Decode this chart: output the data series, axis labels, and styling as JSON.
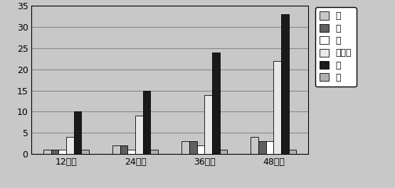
{
  "categories": [
    "12个月",
    "24个月",
    "36个月",
    "48个月"
  ],
  "series": {
    "氮": [
      1,
      2,
      3,
      4
    ],
    "磷": [
      1,
      2,
      3,
      3
    ],
    "锂": [
      1,
      1,
      2,
      3
    ],
    "有机物": [
      4,
      9,
      14,
      22
    ],
    "水": [
      10,
      15,
      24,
      33
    ],
    "盐": [
      1,
      1,
      1,
      1
    ]
  },
  "colors": [
    "#c8c8c8",
    "#606060",
    "#ffffff",
    "#e8e8e8",
    "#1a1a1a",
    "#b0b0b0"
  ],
  "legend_labels": [
    "氮",
    "磷",
    "锂",
    "有机物",
    "水",
    "盐"
  ],
  "ylim": [
    0,
    35
  ],
  "yticks": [
    0,
    5,
    10,
    15,
    20,
    25,
    30,
    35
  ],
  "plot_area_color": "#c8c8c8",
  "figure_bg": "#c8c8c8",
  "bar_edge_color": "#000000",
  "bar_width": 0.11,
  "grid_color": "#888888",
  "tick_fontsize": 9,
  "legend_fontsize": 9
}
